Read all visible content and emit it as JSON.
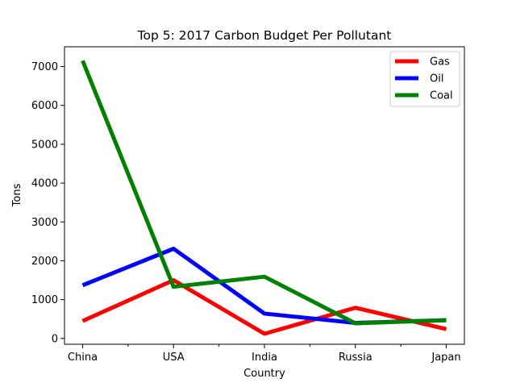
{
  "chart_data": {
    "type": "line",
    "title": "Top 5: 2017 Carbon Budget Per Pollutant",
    "xlabel": "Country",
    "ylabel": "Tons",
    "categories": [
      "China",
      "USA",
      "India",
      "Russia",
      "Japan"
    ],
    "ylim": [
      -150,
      7510
    ],
    "yticks": [
      0,
      1000,
      2000,
      3000,
      4000,
      5000,
      6000,
      7000
    ],
    "grid": false,
    "legend": "top-right",
    "series": [
      {
        "name": "Gas",
        "color": "#ff0000",
        "values": [
          450,
          1500,
          120,
          790,
          240
        ]
      },
      {
        "name": "Oil",
        "color": "#0000ff",
        "values": [
          1370,
          2310,
          640,
          400,
          470
        ]
      },
      {
        "name": "Coal",
        "color": "#008000",
        "values": [
          7150,
          1330,
          1590,
          390,
          470
        ]
      }
    ]
  }
}
